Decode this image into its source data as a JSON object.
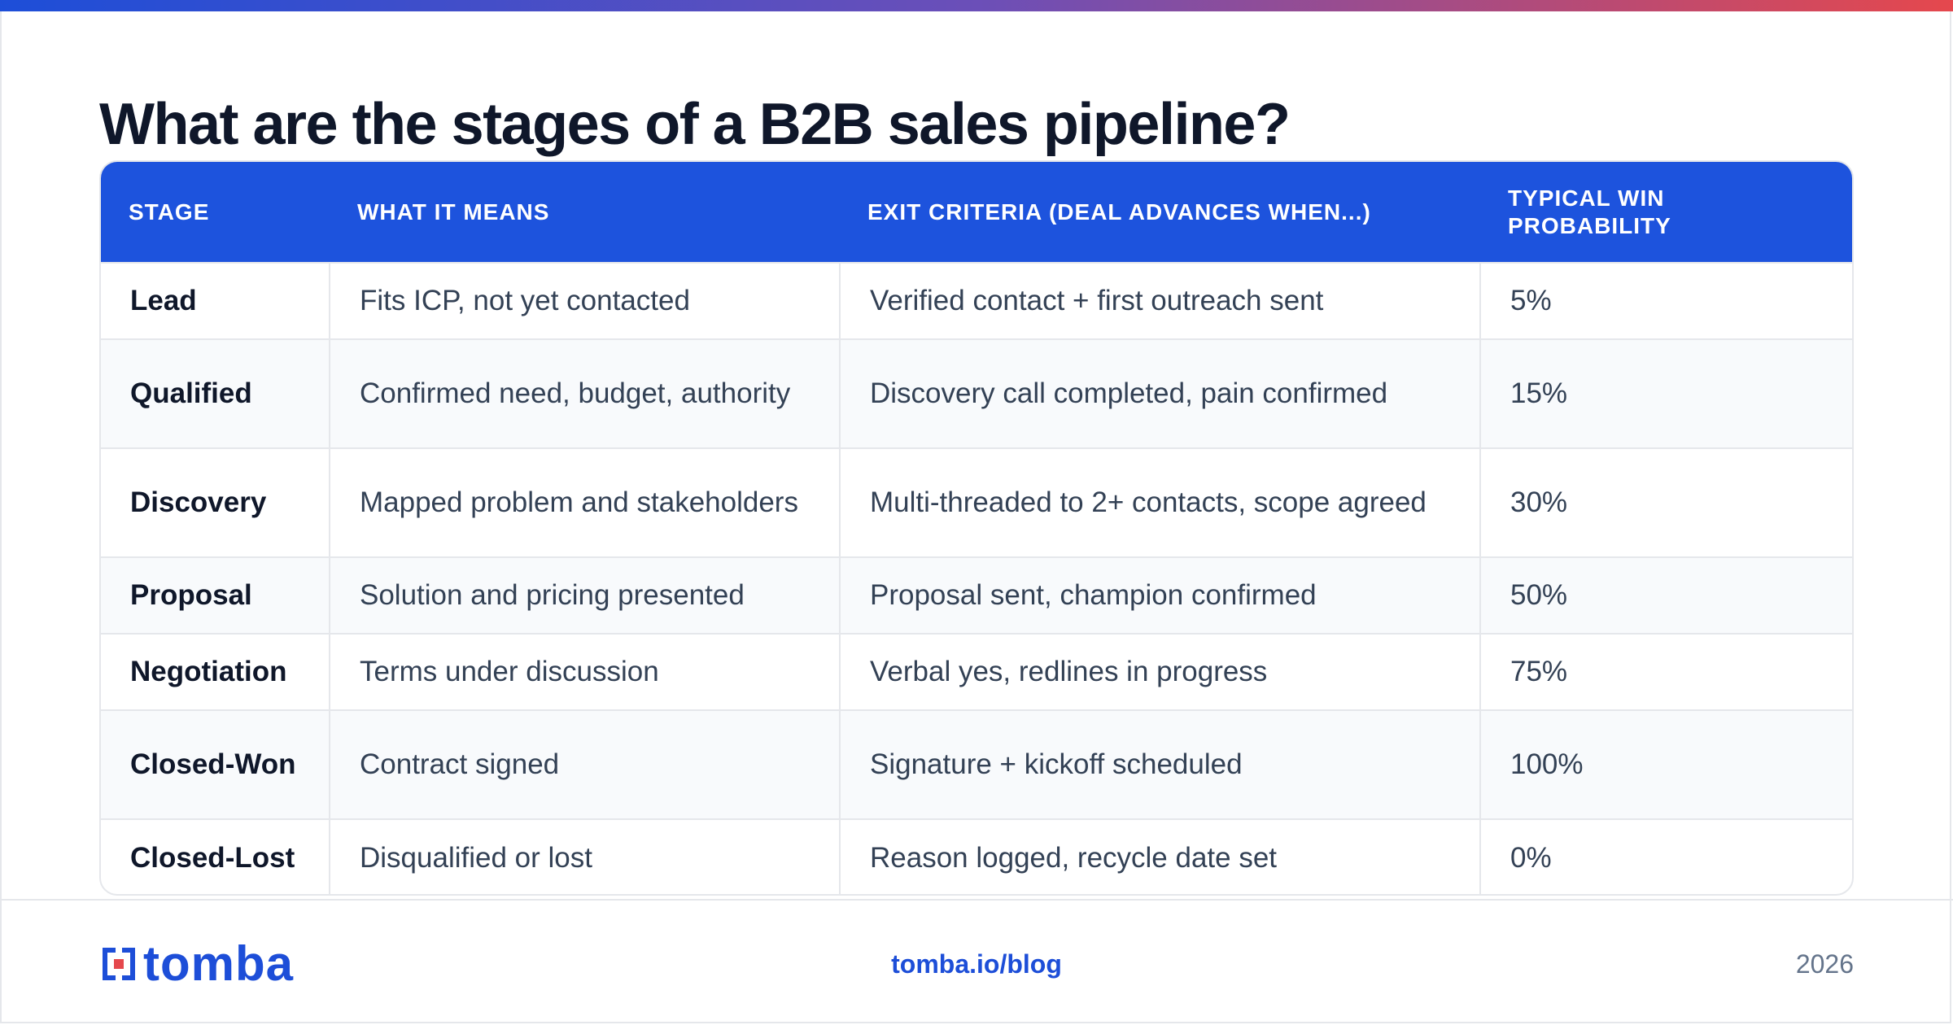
{
  "title": "What are the stages of a B2B sales pipeline?",
  "table": {
    "headers": [
      "STAGE",
      "WHAT IT MEANS",
      "EXIT CRITERIA (DEAL ADVANCES WHEN...)",
      "TYPICAL WIN PROBABILITY"
    ],
    "rows": [
      {
        "stage": "Lead",
        "means": "Fits ICP, not yet contacted",
        "exit": "Verified contact + first outreach sent",
        "prob": "5%"
      },
      {
        "stage": "Qualified",
        "means": "Confirmed need, budget, authority",
        "exit": "Discovery call completed, pain confirmed",
        "prob": "15%"
      },
      {
        "stage": "Discovery",
        "means": "Mapped problem and stakeholders",
        "exit": "Multi-threaded to 2+ contacts, scope agreed",
        "prob": "30%"
      },
      {
        "stage": "Proposal",
        "means": "Solution and pricing presented",
        "exit": "Proposal sent, champion confirmed",
        "prob": "50%"
      },
      {
        "stage": "Negotiation",
        "means": "Terms under discussion",
        "exit": "Verbal yes, redlines in progress",
        "prob": "75%"
      },
      {
        "stage": "Closed-Won",
        "means": "Contract signed",
        "exit": "Signature + kickoff scheduled",
        "prob": "100%"
      },
      {
        "stage": "Closed-Lost",
        "means": "Disqualified or lost",
        "exit": "Reason logged, recycle date set",
        "prob": "0%"
      }
    ]
  },
  "footer": {
    "logo_text": "tomba",
    "link": "tomba.io/blog",
    "year": "2026"
  },
  "colors": {
    "accent": "#1d4ed8",
    "header_bg": "#1d53dd",
    "gradient_start": "#1d4ed8",
    "gradient_end": "#e5484d",
    "logo_red": "#e5484d"
  },
  "icons": {
    "logo_mark": "tomba-logo-icon"
  }
}
